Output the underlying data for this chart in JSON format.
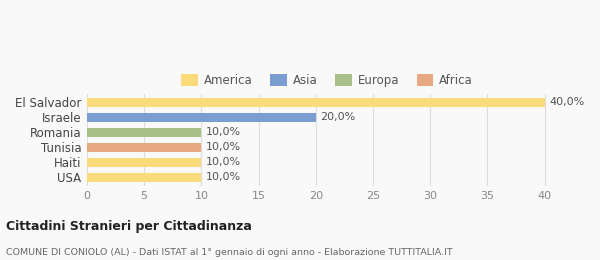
{
  "categories": [
    "El Salvador",
    "Israele",
    "Romania",
    "Tunisia",
    "Haiti",
    "USA"
  ],
  "values": [
    40.0,
    20.0,
    10.0,
    10.0,
    10.0,
    10.0
  ],
  "bar_colors": [
    "#FADA7A",
    "#7B9DD0",
    "#A8BF87",
    "#E8A882",
    "#FADA7A",
    "#FADA7A"
  ],
  "labels": [
    "40,0%",
    "20,0%",
    "10,0%",
    "10,0%",
    "10,0%",
    "10,0%"
  ],
  "legend": [
    {
      "label": "America",
      "color": "#FADA7A"
    },
    {
      "label": "Asia",
      "color": "#7B9DD0"
    },
    {
      "label": "Europa",
      "color": "#A8BF87"
    },
    {
      "label": "Africa",
      "color": "#E8A882"
    }
  ],
  "xlim": [
    0,
    42
  ],
  "xticks": [
    0,
    5,
    10,
    15,
    20,
    25,
    30,
    35,
    40
  ],
  "title1": "Cittadini Stranieri per Cittadinanza",
  "title2": "COMUNE DI CONIOLO (AL) - Dati ISTAT al 1° gennaio di ogni anno - Elaborazione TUTTITALIA.IT",
  "grid_color": "#dddddd",
  "bg_color": "#f9f9f9",
  "bar_edge_color": "none"
}
